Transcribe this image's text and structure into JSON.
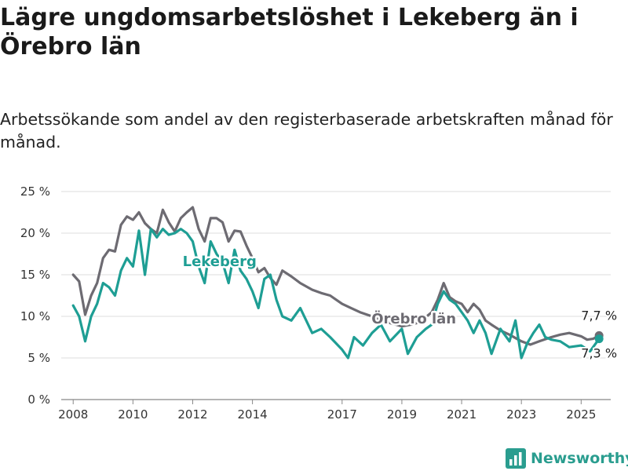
{
  "title": "Lägre ungdomsarbetslöshet i Lekeberg än i Örebro län",
  "subtitle": "Arbetssökande som andel av den registerbaserade arbetskraften månad för månad.",
  "brand": {
    "name": "Newsworthy",
    "icon": "bar-chart-logo-icon",
    "color": "#2a9d8f"
  },
  "chart_data": {
    "type": "line",
    "title": "Lägre ungdomsarbetslöshet i Lekeberg än i Örebro län",
    "xlabel": "",
    "ylabel": "",
    "xlim": [
      2007.6,
      2025.99
    ],
    "ylim": [
      0,
      25
    ],
    "yticks": [
      0,
      5,
      10,
      15,
      20,
      25
    ],
    "ytick_labels": [
      "0 %",
      "5 %",
      "10 %",
      "15 %",
      "20 %",
      "25 %"
    ],
    "xticks": [
      2008,
      2010,
      2012,
      2014,
      2017,
      2019,
      2021,
      2023,
      2025
    ],
    "grid": true,
    "legend": "none",
    "series": [
      {
        "name": "Örebro län",
        "color": "#6d6b72",
        "label_at": [
          2019.4,
          9.7
        ],
        "end_label": "7,7 %",
        "x": [
          2008.0,
          2008.2,
          2008.4,
          2008.6,
          2008.8,
          2009.0,
          2009.2,
          2009.4,
          2009.6,
          2009.8,
          2010.0,
          2010.2,
          2010.4,
          2010.6,
          2010.8,
          2011.0,
          2011.2,
          2011.4,
          2011.6,
          2011.8,
          2012.0,
          2012.2,
          2012.4,
          2012.6,
          2012.8,
          2013.0,
          2013.2,
          2013.4,
          2013.6,
          2013.8,
          2014.0,
          2014.2,
          2014.4,
          2014.6,
          2014.8,
          2015.0,
          2015.3,
          2015.6,
          2016.0,
          2016.3,
          2016.6,
          2017.0,
          2017.3,
          2017.6,
          2018.0,
          2018.3,
          2018.6,
          2019.0,
          2019.3,
          2019.6,
          2020.0,
          2020.2,
          2020.4,
          2020.6,
          2020.8,
          2021.0,
          2021.2,
          2021.4,
          2021.6,
          2021.8,
          2022.0,
          2022.3,
          2022.6,
          2023.0,
          2023.3,
          2023.6,
          2024.0,
          2024.3,
          2024.6,
          2025.0,
          2025.2,
          2025.4,
          2025.6
        ],
        "values": [
          15.0,
          14.2,
          10.2,
          12.5,
          14.0,
          17.0,
          18.0,
          17.8,
          21.0,
          22.0,
          21.6,
          22.5,
          21.2,
          20.5,
          20.0,
          22.8,
          21.3,
          20.2,
          21.8,
          22.5,
          23.1,
          20.5,
          19.0,
          21.8,
          21.8,
          21.3,
          19.0,
          20.3,
          20.2,
          18.5,
          17.0,
          15.3,
          15.8,
          14.6,
          13.8,
          15.5,
          14.8,
          14.0,
          13.2,
          12.8,
          12.5,
          11.5,
          11.0,
          10.5,
          10.0,
          9.5,
          9.2,
          8.8,
          9.0,
          9.3,
          10.5,
          12.0,
          14.0,
          12.3,
          11.8,
          11.5,
          10.5,
          11.5,
          10.8,
          9.5,
          9.0,
          8.3,
          7.8,
          7.0,
          6.6,
          7.0,
          7.5,
          7.8,
          8.0,
          7.6,
          7.2,
          7.3,
          7.7
        ]
      },
      {
        "name": "Lekeberg",
        "color": "#1e9e94",
        "label_at": [
          2012.9,
          16.6
        ],
        "end_label": "7,3 %",
        "x": [
          2008.0,
          2008.2,
          2008.4,
          2008.6,
          2008.8,
          2009.0,
          2009.2,
          2009.4,
          2009.6,
          2009.8,
          2010.0,
          2010.2,
          2010.4,
          2010.6,
          2010.8,
          2011.0,
          2011.2,
          2011.4,
          2011.6,
          2011.8,
          2012.0,
          2012.2,
          2012.4,
          2012.6,
          2012.8,
          2013.0,
          2013.2,
          2013.4,
          2013.6,
          2013.8,
          2014.0,
          2014.2,
          2014.4,
          2014.6,
          2014.8,
          2015.0,
          2015.3,
          2015.6,
          2016.0,
          2016.3,
          2016.6,
          2017.0,
          2017.2,
          2017.4,
          2017.7,
          2018.0,
          2018.3,
          2018.6,
          2019.0,
          2019.2,
          2019.5,
          2019.8,
          2020.0,
          2020.2,
          2020.4,
          2020.6,
          2020.8,
          2021.0,
          2021.2,
          2021.4,
          2021.6,
          2021.8,
          2022.0,
          2022.3,
          2022.6,
          2022.8,
          2023.0,
          2023.2,
          2023.4,
          2023.6,
          2023.8,
          2024.0,
          2024.3,
          2024.6,
          2025.0,
          2025.3,
          2025.6
        ],
        "values": [
          11.3,
          10.0,
          7.0,
          10.0,
          11.5,
          14.0,
          13.5,
          12.5,
          15.5,
          17.0,
          16.0,
          20.3,
          15.0,
          20.5,
          19.5,
          20.5,
          19.8,
          20.0,
          20.5,
          20.0,
          19.0,
          16.0,
          14.0,
          19.0,
          17.5,
          16.5,
          14.0,
          18.0,
          15.5,
          14.5,
          13.0,
          11.0,
          14.5,
          15.0,
          12.0,
          10.0,
          9.5,
          11.0,
          8.0,
          8.5,
          7.5,
          6.0,
          5.0,
          7.5,
          6.5,
          8.0,
          9.0,
          7.0,
          8.5,
          5.5,
          7.5,
          8.5,
          9.0,
          11.5,
          13.0,
          12.0,
          11.5,
          10.5,
          9.5,
          8.0,
          9.5,
          8.0,
          5.5,
          8.5,
          7.0,
          9.5,
          5.0,
          6.8,
          8.0,
          9.0,
          7.5,
          7.2,
          7.0,
          6.3,
          6.5,
          5.8,
          7.3
        ]
      }
    ]
  }
}
